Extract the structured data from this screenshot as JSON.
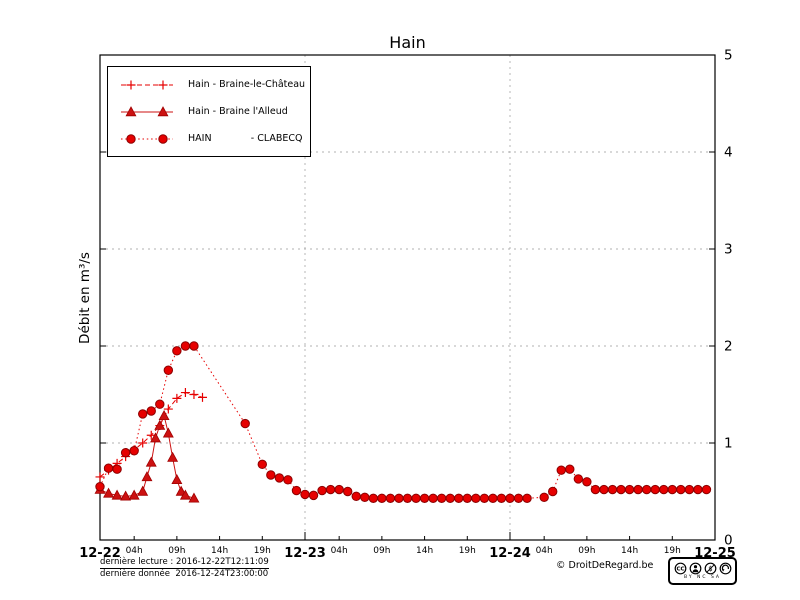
{
  "chart_data": {
    "type": "line",
    "title": "Hain",
    "xlabel": "",
    "ylabel": "Débit en m³/s",
    "ylim": [
      0,
      5
    ],
    "xlim": [
      0,
      72
    ],
    "x_unit": "hours since 2016-12-22 00:00",
    "grid": {
      "x_at": [
        24,
        48
      ],
      "y_at": [
        1,
        2,
        3,
        4
      ]
    },
    "legend_position": "top-left",
    "y_ticks": [
      0,
      1,
      2,
      3,
      4,
      5
    ],
    "x_major_ticks": [
      {
        "t": 0,
        "label": "12-22"
      },
      {
        "t": 24,
        "label": "12-23"
      },
      {
        "t": 48,
        "label": "12-24"
      },
      {
        "t": 72,
        "label": "12-25"
      }
    ],
    "x_minor_ticks": [
      {
        "t": 4,
        "label": "04h"
      },
      {
        "t": 9,
        "label": "09h"
      },
      {
        "t": 14,
        "label": "14h"
      },
      {
        "t": 19,
        "label": "19h"
      },
      {
        "t": 28,
        "label": "04h"
      },
      {
        "t": 33,
        "label": "09h"
      },
      {
        "t": 38,
        "label": "14h"
      },
      {
        "t": 43,
        "label": "19h"
      },
      {
        "t": 52,
        "label": "04h"
      },
      {
        "t": 57,
        "label": "09h"
      },
      {
        "t": 62,
        "label": "14h"
      },
      {
        "t": 67,
        "label": "19h"
      }
    ],
    "series": [
      {
        "name": "Hain - Braine-le-Château",
        "marker": "plus",
        "line": "dashed",
        "color": "#e60000",
        "edge": "#e60000",
        "points": [
          [
            0,
            0.65
          ],
          [
            1,
            0.72
          ],
          [
            2,
            0.79
          ],
          [
            3,
            0.86
          ],
          [
            4,
            0.93
          ],
          [
            5,
            1.0
          ],
          [
            6,
            1.08
          ],
          [
            7,
            1.18
          ],
          [
            8,
            1.35
          ],
          [
            9,
            1.46
          ],
          [
            10,
            1.52
          ],
          [
            11,
            1.5
          ],
          [
            12,
            1.47
          ]
        ]
      },
      {
        "name": "Hain - Braine l'Alleud",
        "marker": "triangle",
        "line": "solid",
        "color": "#cc1111",
        "edge": "#a00000",
        "points": [
          [
            0,
            0.52
          ],
          [
            1,
            0.48
          ],
          [
            2,
            0.46
          ],
          [
            3,
            0.45
          ],
          [
            4,
            0.46
          ],
          [
            5,
            0.5
          ],
          [
            5.5,
            0.65
          ],
          [
            6,
            0.8
          ],
          [
            6.5,
            1.05
          ],
          [
            7,
            1.18
          ],
          [
            7.5,
            1.28
          ],
          [
            8,
            1.1
          ],
          [
            8.5,
            0.85
          ],
          [
            9,
            0.62
          ],
          [
            9.5,
            0.5
          ],
          [
            10,
            0.46
          ],
          [
            11,
            0.43
          ]
        ]
      },
      {
        "name": "HAIN             - CLABECQ",
        "marker": "circle",
        "line": "dotted",
        "color": "#e60000",
        "edge": "#8b0000",
        "points": [
          [
            0,
            0.55
          ],
          [
            1,
            0.74
          ],
          [
            2,
            0.73
          ],
          [
            3,
            0.9
          ],
          [
            4,
            0.92
          ],
          [
            5,
            1.3
          ],
          [
            6,
            1.33
          ],
          [
            7,
            1.4
          ],
          [
            8,
            1.75
          ],
          [
            9,
            1.95
          ],
          [
            10,
            2.0
          ],
          [
            11,
            2.0
          ],
          [
            17,
            1.2
          ],
          [
            19,
            0.78
          ],
          [
            20,
            0.67
          ],
          [
            21,
            0.64
          ],
          [
            22,
            0.62
          ],
          [
            23,
            0.51
          ],
          [
            24,
            0.47
          ],
          [
            25,
            0.46
          ],
          [
            26,
            0.51
          ],
          [
            27,
            0.52
          ],
          [
            28,
            0.52
          ],
          [
            29,
            0.5
          ],
          [
            30,
            0.45
          ],
          [
            31,
            0.44
          ],
          [
            32,
            0.43
          ],
          [
            33,
            0.43
          ],
          [
            34,
            0.43
          ],
          [
            35,
            0.43
          ],
          [
            36,
            0.43
          ],
          [
            37,
            0.43
          ],
          [
            38,
            0.43
          ],
          [
            39,
            0.43
          ],
          [
            40,
            0.43
          ],
          [
            41,
            0.43
          ],
          [
            42,
            0.43
          ],
          [
            43,
            0.43
          ],
          [
            44,
            0.43
          ],
          [
            45,
            0.43
          ],
          [
            46,
            0.43
          ],
          [
            47,
            0.43
          ],
          [
            48,
            0.43
          ],
          [
            49,
            0.43
          ],
          [
            50,
            0.43
          ],
          [
            52,
            0.44
          ],
          [
            53,
            0.5
          ],
          [
            54,
            0.72
          ],
          [
            55,
            0.73
          ],
          [
            56,
            0.63
          ],
          [
            57,
            0.6
          ],
          [
            58,
            0.52
          ],
          [
            59,
            0.52
          ],
          [
            60,
            0.52
          ],
          [
            61,
            0.52
          ],
          [
            62,
            0.52
          ],
          [
            63,
            0.52
          ],
          [
            64,
            0.52
          ],
          [
            65,
            0.52
          ],
          [
            66,
            0.52
          ],
          [
            67,
            0.52
          ],
          [
            68,
            0.52
          ],
          [
            69,
            0.52
          ],
          [
            70,
            0.52
          ],
          [
            71,
            0.52
          ]
        ]
      }
    ]
  },
  "footer": {
    "last_reading": "dernière lecture : 2016-12-22T12:11:09",
    "last_data": "dernière donnée  2016-12-24T23:00:00",
    "copyright": "© DroitDeRegard.be"
  },
  "badge": {
    "caption": "BY NC SA"
  }
}
